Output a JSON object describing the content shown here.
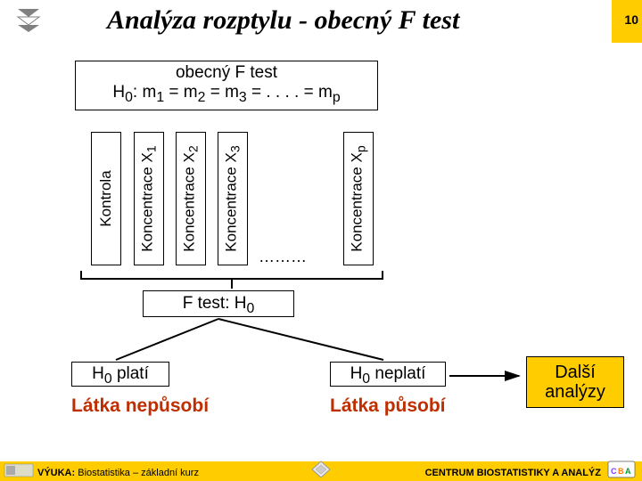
{
  "page_number": "10",
  "title": "Analýza rozptylu -  obecný F test",
  "hypothesis": {
    "line1": "obecný F test",
    "line2_html": "H<sub>0</sub>: m<sub>1</sub> = m<sub>2</sub> = m<sub>3</sub> = . . . . = m<sub>p</sub>"
  },
  "groups": {
    "control": "Kontrola",
    "x1_html": "Koncentrace X<sub>1</sub>",
    "x2_html": "Koncentrace X<sub>2</sub>",
    "x3_html": "Koncentrace X<sub>3</sub>",
    "xp_html": "Koncentrace X<sub>p</sub>",
    "dots": "………"
  },
  "ftest_html": "F test: H<sub>0</sub>",
  "result_left_html": "H<sub>0</sub> platí",
  "result_right_html": "H<sub>0</sub> neplatí",
  "conclusion_left": "Látka nepůsobí",
  "conclusion_right": "Látka působí",
  "next_box": "Další analýzy",
  "footer": {
    "left_bold": "VÝUKA: ",
    "left_rest": "Biostatistika – základní kurz",
    "right": "CENTRUM BIOSTATISTIKY A ANALÝZ"
  },
  "colors": {
    "accent_yellow": "#ffcc00",
    "accent_red": "#bf2e00",
    "border": "#000000",
    "bg": "#ffffff"
  }
}
